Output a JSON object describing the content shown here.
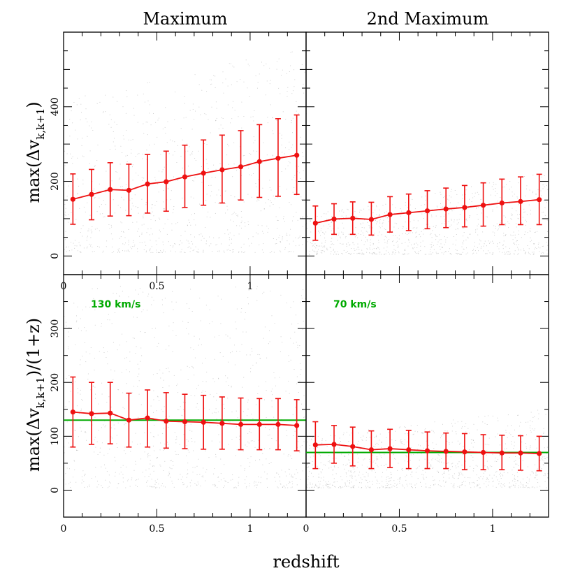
{
  "figure": {
    "column_titles": [
      "Maximum",
      "2nd Maximum"
    ],
    "xlabel": "redshift",
    "ylabel_top": {
      "prefix": "max(Δv",
      "sub": "k,k+1",
      "suffix": ")"
    },
    "ylabel_bottom": {
      "prefix": "max(Δv",
      "sub": "k,k+1",
      "suffix": ")/(1+z)"
    }
  },
  "colors": {
    "series": "#ee1111",
    "reference": "#00aa00",
    "scatter": "#9a9a9a",
    "axes": "#000000"
  },
  "chart_data": [
    {
      "type": "scatter",
      "title": "Maximum",
      "xlim": [
        0,
        1.3
      ],
      "ylim": [
        -50,
        600
      ],
      "xticks": [
        0,
        0.5,
        1
      ],
      "xtick_labels": [
        "0",
        "0.5",
        "1"
      ],
      "yticks": [
        0,
        200,
        400
      ],
      "ytick_labels": [
        "0",
        "200",
        "400"
      ],
      "series": [
        {
          "x": [
            0.05,
            0.15,
            0.25,
            0.35,
            0.45,
            0.55,
            0.65,
            0.75,
            0.85,
            0.95,
            1.05,
            1.15,
            1.25
          ],
          "y": [
            152,
            165,
            178,
            176,
            193,
            199,
            212,
            222,
            231,
            239,
            253,
            262,
            270
          ],
          "err_low": [
            85,
            97,
            107,
            108,
            115,
            120,
            130,
            136,
            142,
            150,
            157,
            160,
            165
          ],
          "err_high": [
            220,
            232,
            250,
            246,
            272,
            281,
            297,
            311,
            324,
            336,
            352,
            368,
            378
          ]
        }
      ]
    },
    {
      "type": "scatter",
      "title": "2nd Maximum",
      "xlim": [
        0,
        1.3
      ],
      "ylim": [
        -50,
        600
      ],
      "xticks": [
        0,
        0.5,
        1
      ],
      "yticks": [
        0,
        200,
        400
      ],
      "series": [
        {
          "x": [
            0.05,
            0.15,
            0.25,
            0.35,
            0.45,
            0.55,
            0.65,
            0.75,
            0.85,
            0.95,
            1.05,
            1.15,
            1.25
          ],
          "y": [
            88,
            99,
            101,
            98,
            111,
            116,
            121,
            126,
            130,
            136,
            142,
            146,
            151
          ],
          "err_low": [
            42,
            58,
            58,
            56,
            64,
            68,
            73,
            76,
            78,
            80,
            84,
            84,
            84
          ],
          "err_high": [
            134,
            140,
            145,
            144,
            159,
            166,
            175,
            182,
            189,
            196,
            206,
            212,
            219
          ]
        }
      ]
    },
    {
      "type": "scatter",
      "xlim": [
        0,
        1.3
      ],
      "ylim": [
        -50,
        400
      ],
      "xticks": [
        0,
        0.5,
        1
      ],
      "xtick_labels": [
        "0",
        "0.5",
        "1"
      ],
      "yticks": [
        0,
        100,
        200,
        300
      ],
      "ytick_labels": [
        "0",
        "100",
        "200",
        "300"
      ],
      "reference_line": {
        "y": 130,
        "label": "130 km/s"
      },
      "series": [
        {
          "x": [
            0.05,
            0.15,
            0.25,
            0.35,
            0.45,
            0.55,
            0.65,
            0.75,
            0.85,
            0.95,
            1.05,
            1.15,
            1.25
          ],
          "y": [
            145,
            142,
            143,
            130,
            134,
            128,
            127,
            126,
            124,
            122,
            122,
            122,
            120
          ],
          "err_low": [
            80,
            85,
            86,
            80,
            80,
            78,
            77,
            76,
            76,
            75,
            75,
            75,
            73
          ],
          "err_high": [
            210,
            200,
            200,
            180,
            186,
            181,
            178,
            176,
            173,
            171,
            170,
            170,
            168
          ]
        }
      ]
    },
    {
      "type": "scatter",
      "xlim": [
        0,
        1.3
      ],
      "ylim": [
        -50,
        400
      ],
      "xticks": [
        0,
        0.5,
        1
      ],
      "xtick_labels": [
        "0",
        "0.5",
        "1"
      ],
      "yticks": [
        0,
        100,
        200,
        300
      ],
      "reference_line": {
        "y": 70,
        "label": "70 km/s"
      },
      "series": [
        {
          "x": [
            0.05,
            0.15,
            0.25,
            0.35,
            0.45,
            0.55,
            0.65,
            0.75,
            0.85,
            0.95,
            1.05,
            1.15,
            1.25
          ],
          "y": [
            84,
            85,
            81,
            75,
            77,
            75,
            73,
            72,
            71,
            70,
            69,
            69,
            68
          ],
          "err_low": [
            40,
            50,
            45,
            40,
            42,
            40,
            40,
            40,
            38,
            38,
            38,
            37,
            36
          ],
          "err_high": [
            127,
            120,
            117,
            110,
            113,
            111,
            108,
            106,
            105,
            103,
            102,
            101,
            100
          ]
        }
      ]
    }
  ]
}
